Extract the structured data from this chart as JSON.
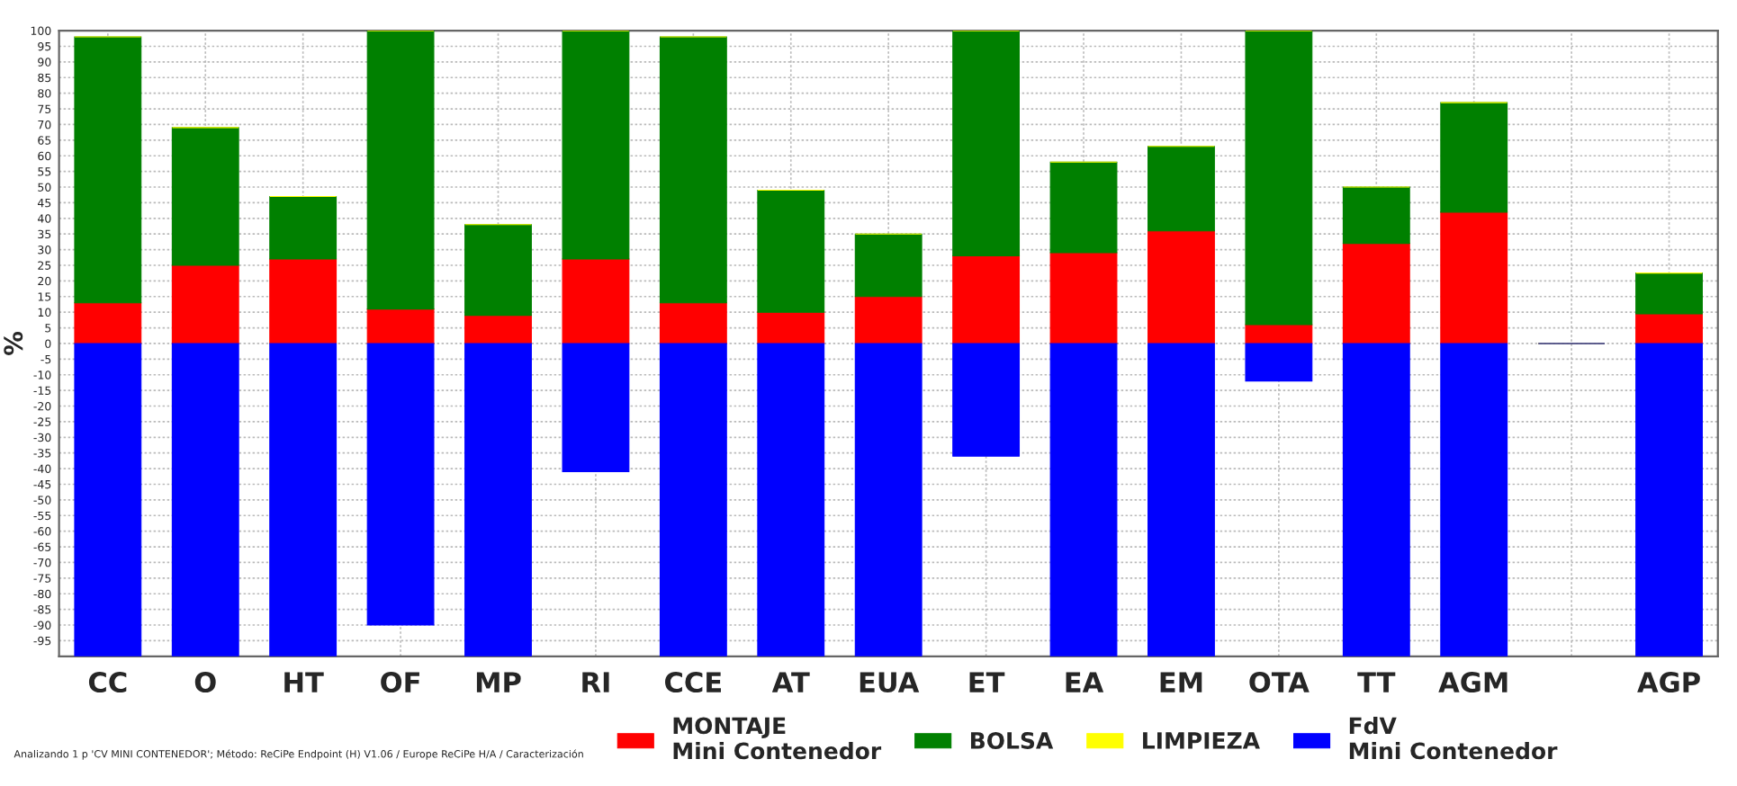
{
  "chart_data": {
    "type": "bar",
    "stacked": true,
    "ylabel": "%",
    "categories": [
      "CC",
      "O",
      "HT",
      "OF",
      "MP",
      "RI",
      "CCE",
      "AT",
      "EUA",
      "ET",
      "EA",
      "EM",
      "OTA",
      "TT",
      "AGM",
      null,
      "AGP"
    ],
    "series": [
      {
        "name": "MONTAJE\nMini Contenedor",
        "color": "#ff0000",
        "values": [
          13,
          25,
          27,
          11,
          9,
          27,
          13,
          10,
          15,
          28,
          29,
          36,
          6,
          32,
          42,
          0,
          9.5
        ]
      },
      {
        "name": "BOLSA",
        "color": "#008000",
        "values": [
          85,
          44,
          20,
          89,
          29,
          73,
          85,
          39,
          20,
          72,
          29,
          27,
          94,
          18,
          35,
          0,
          13
        ]
      },
      {
        "name": "LIMPIEZA",
        "color": "#ffff00",
        "values": [
          0,
          0,
          0,
          0,
          0,
          0,
          0,
          0,
          0,
          0,
          0,
          0,
          0,
          0,
          0,
          0,
          0
        ]
      },
      {
        "name": "FdV\nMini Contenedor",
        "color": "#0000ff",
        "values": [
          -100,
          -100,
          -100,
          -90,
          -100,
          -41,
          -100,
          -100,
          -100,
          -36,
          -100,
          -100,
          -12,
          -100,
          -100,
          0,
          -100
        ]
      }
    ],
    "ylim": [
      -100,
      100
    ],
    "yticks": [
      100,
      95,
      90,
      85,
      80,
      75,
      70,
      65,
      60,
      55,
      50,
      45,
      40,
      35,
      30,
      25,
      20,
      15,
      10,
      5,
      0,
      -5,
      -10,
      -15,
      -20,
      -25,
      -30,
      -35,
      -40,
      -45,
      -50,
      -55,
      -60,
      -65,
      -70,
      -75,
      -80,
      -85,
      -90,
      -95,
      {
        "value": -100,
        "label": null
      }
    ],
    "grid": true,
    "legend": "bottom",
    "annotations": [
      "Analizando 1 p 'CV MINI CONTENEDOR'; Método: ReCiPe Endpoint (H) V1.06 / Europe ReCiPe H/A / Caracterización"
    ]
  }
}
